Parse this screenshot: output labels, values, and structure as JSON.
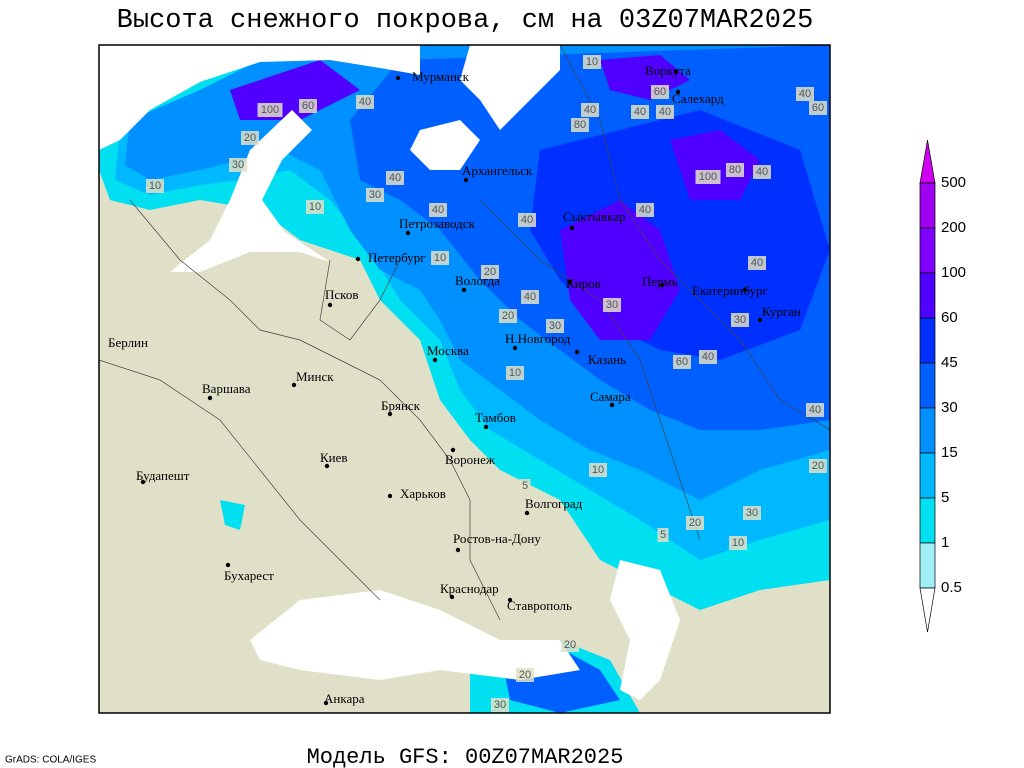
{
  "title": "Высота снежного покрова, см на 03Z07MAR2025",
  "footer": "Модель GFS: 00Z07MAR2025",
  "credit": "GrADS: COLA/IGES",
  "cities": [
    "Мурманск",
    "Воркута",
    "Салехард",
    "Архангельск",
    "Петрозаводск",
    "Сыктывкар",
    "Петербург",
    "Вологда",
    "Киров",
    "Пермь",
    "Екатеринбург",
    "Курган",
    "Псков",
    "Берлин",
    "Н.Новгород",
    "Москва",
    "Казань",
    "Минск",
    "Варшава",
    "Брянск",
    "Тамбов",
    "Самара",
    "Киев",
    "Воронеж",
    "Будапешт",
    "Харьков",
    "Волгоград",
    "Ростов-на-Дону",
    "Бухарест",
    "Краснодар",
    "Ставрополь",
    "Анкара"
  ],
  "contour_labels": [
    "100",
    "60",
    "40",
    "30",
    "20",
    "10",
    "40",
    "80",
    "40",
    "10",
    "60",
    "40",
    "40",
    "60",
    "100",
    "80",
    "40",
    "30",
    "40",
    "10",
    "40",
    "40",
    "40",
    "30",
    "20",
    "10",
    "60",
    "40",
    "30",
    "40",
    "40",
    "20",
    "10",
    "5",
    "10",
    "20",
    "30",
    "10",
    "20",
    "30",
    "5",
    "20",
    "30",
    "20",
    "40"
  ],
  "legend": {
    "labels": [
      "500",
      "200",
      "100",
      "60",
      "45",
      "30",
      "15",
      "5",
      "1",
      "0.5"
    ],
    "colors": [
      "#d000f0",
      "#a000f0",
      "#8000ff",
      "#5000ff",
      "#0030ff",
      "#0060ff",
      "#0090ff",
      "#00b8ff",
      "#00e0f0",
      "#a0f0f8",
      "#ffffff"
    ]
  }
}
